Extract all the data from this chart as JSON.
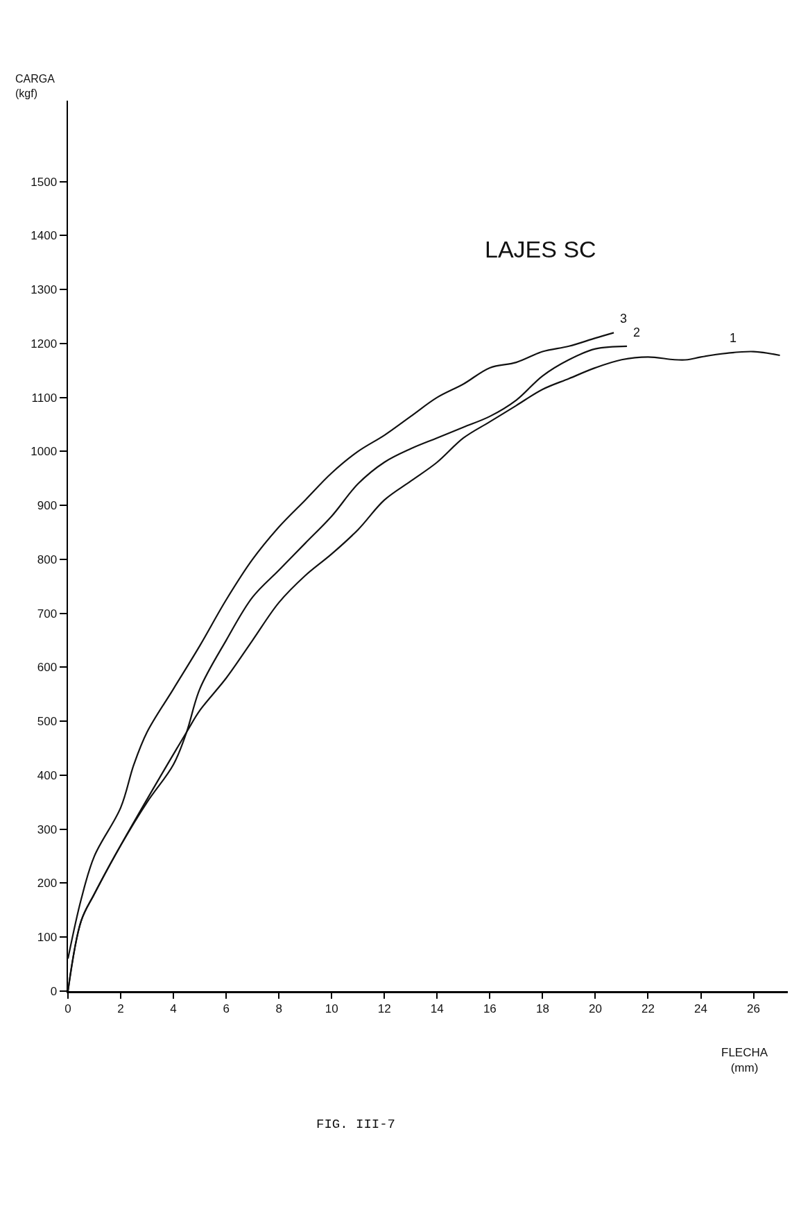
{
  "chart_data": {
    "type": "line",
    "title": "LAJES SC",
    "xlabel": "FLECHA\n(mm)",
    "ylabel": "CARGA\n(kgf)",
    "xlim": [
      0,
      27.3
    ],
    "ylim": [
      0,
      1650
    ],
    "xticks": [
      0,
      2,
      4,
      6,
      8,
      10,
      12,
      14,
      16,
      18,
      20,
      22,
      24,
      26
    ],
    "yticks": [
      0,
      100,
      200,
      300,
      400,
      500,
      600,
      700,
      800,
      900,
      1000,
      1100,
      1200,
      1300,
      1400,
      1500
    ],
    "grid": false,
    "marker": "none",
    "line_style": "solid",
    "series": [
      {
        "name": "1",
        "color": "#111111",
        "x": [
          0,
          0.5,
          1,
          2,
          4.5,
          5,
          6,
          7,
          8,
          9,
          10,
          11,
          12,
          13,
          14,
          15,
          16,
          17,
          18,
          19,
          20,
          21,
          22,
          23,
          23.5,
          24,
          25,
          26,
          27
        ],
        "values": [
          0,
          130,
          180,
          270,
          480,
          520,
          580,
          650,
          720,
          770,
          810,
          855,
          910,
          945,
          980,
          1025,
          1055,
          1085,
          1115,
          1135,
          1155,
          1170,
          1175,
          1170,
          1170,
          1175,
          1182,
          1185,
          1178
        ]
      },
      {
        "name": "2",
        "color": "#111111",
        "x": [
          0,
          0.5,
          1,
          2,
          3,
          4,
          4.5,
          5,
          6,
          7,
          8,
          9,
          10,
          11,
          12,
          13,
          14,
          15,
          16,
          17,
          18,
          19,
          20,
          21.2
        ],
        "values": [
          0,
          130,
          180,
          270,
          350,
          420,
          480,
          560,
          650,
          730,
          780,
          830,
          880,
          940,
          980,
          1005,
          1025,
          1045,
          1065,
          1095,
          1140,
          1170,
          1190,
          1195
        ]
      },
      {
        "name": "3",
        "color": "#111111",
        "x": [
          0,
          0.5,
          1,
          2,
          2.5,
          3,
          4,
          5,
          6,
          7,
          8,
          9,
          10,
          11,
          12,
          13,
          14,
          15,
          16,
          17,
          18,
          19,
          20,
          20.7
        ],
        "values": [
          60,
          170,
          250,
          340,
          420,
          480,
          560,
          640,
          725,
          800,
          860,
          910,
          960,
          1000,
          1030,
          1065,
          1100,
          1125,
          1155,
          1165,
          1185,
          1195,
          1210,
          1220
        ]
      }
    ],
    "annotations": [
      "FIG. III-7"
    ]
  }
}
